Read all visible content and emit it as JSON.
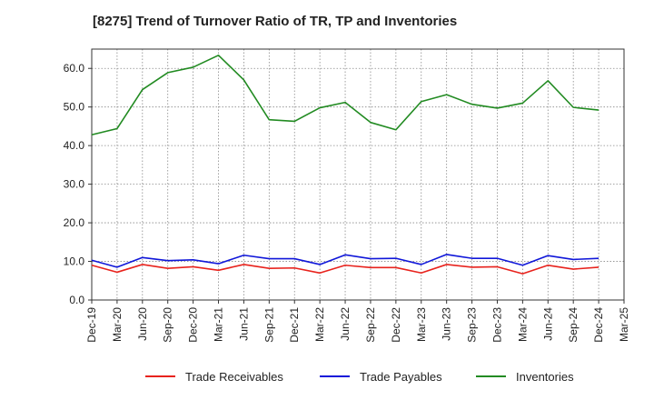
{
  "chart_data": {
    "type": "line",
    "title": "[8275]  Trend of Turnover Ratio of TR, TP and Inventories",
    "xlabel": "",
    "ylabel": "",
    "ylim": [
      0,
      65
    ],
    "yticks": [
      "0.0",
      "10.0",
      "20.0",
      "30.0",
      "40.0",
      "50.0",
      "60.0"
    ],
    "ytick_values": [
      0,
      10,
      20,
      30,
      40,
      50,
      60
    ],
    "xtick_labels": [
      "Dec-19",
      "Mar-20",
      "Jun-20",
      "Sep-20",
      "Dec-20",
      "Mar-21",
      "Jun-21",
      "Sep-21",
      "Dec-21",
      "Mar-22",
      "Jun-22",
      "Sep-22",
      "Dec-22",
      "Mar-23",
      "Jun-23",
      "Sep-23",
      "Dec-23",
      "Mar-24",
      "Jun-24",
      "Sep-24",
      "Dec-24",
      "Mar-25"
    ],
    "categories": [
      "Dec-19",
      "Mar-20",
      "Jun-20",
      "Sep-20",
      "Dec-20",
      "Mar-21",
      "Jun-21",
      "Sep-21",
      "Dec-21",
      "Mar-22",
      "Jun-22",
      "Sep-22",
      "Dec-22",
      "Mar-23",
      "Jun-23",
      "Sep-23",
      "Dec-23",
      "Mar-24",
      "Jun-24",
      "Sep-24",
      "Dec-24"
    ],
    "grid": true,
    "grid_style": "dotted",
    "legend_position": "bottom",
    "series": [
      {
        "name": "Trade Receivables",
        "color": "#e8231d",
        "values": [
          9.0,
          7.2,
          9.2,
          8.2,
          8.6,
          7.7,
          9.2,
          8.2,
          8.3,
          7.0,
          9.0,
          8.4,
          8.4,
          7.0,
          9.2,
          8.5,
          8.6,
          6.8,
          9.0,
          8.0,
          8.5
        ]
      },
      {
        "name": "Trade Payables",
        "color": "#1017d9",
        "values": [
          10.3,
          8.5,
          11.0,
          10.2,
          10.4,
          9.4,
          11.6,
          10.7,
          10.7,
          9.2,
          11.7,
          10.7,
          10.8,
          9.2,
          11.8,
          10.8,
          10.8,
          9.0,
          11.5,
          10.5,
          10.8
        ]
      },
      {
        "name": "Inventories",
        "color": "#228b22",
        "values": [
          42.8,
          44.4,
          54.5,
          58.9,
          60.3,
          63.4,
          57.0,
          46.7,
          46.3,
          49.8,
          51.2,
          46.0,
          44.1,
          51.4,
          53.2,
          50.7,
          49.7,
          51.0,
          56.8,
          49.9,
          49.2
        ]
      }
    ]
  }
}
